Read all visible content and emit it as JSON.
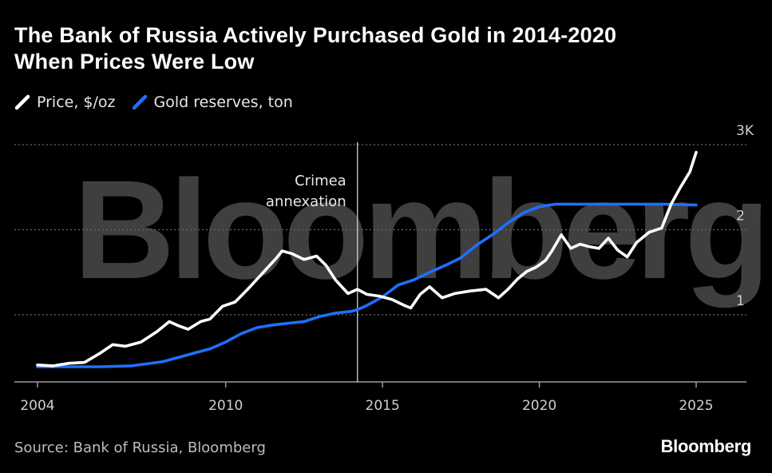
{
  "title_lines": [
    "The Bank of Russia Actively Purchased Gold in 2014-2020",
    "When Prices Were Low"
  ],
  "legend": [
    {
      "label": "Price, $/oz",
      "color": "#ffffff"
    },
    {
      "label": "Gold reserves, ton",
      "color": "#1f6fff"
    }
  ],
  "source": "Source: Bank of Russia, Bloomberg",
  "brand": "Bloomberg",
  "watermark": "Bloomberg",
  "chart_data": {
    "type": "line",
    "title": "The Bank of Russia Actively Purchased Gold in 2014-2020 When Prices Were Low",
    "x_ticks": [
      "2004",
      "2010",
      "2015",
      "2020",
      "2025"
    ],
    "y_ticks": [
      "1",
      "2",
      "3K"
    ],
    "xlim": [
      2004,
      2026.5
    ],
    "ylim": [
      0.2,
      3.1
    ],
    "grid": "horizontal dotted",
    "legend_position": "top-left",
    "annotation": {
      "text_lines": [
        "Crimea",
        "annexation"
      ],
      "x": 2014.2
    },
    "series": [
      {
        "name": "Price, $/oz",
        "color": "#ffffff",
        "unit": "thousand $/oz",
        "x": [
          2004.0,
          2004.5,
          2005.0,
          2005.5,
          2006.0,
          2006.4,
          2006.8,
          2007.3,
          2007.8,
          2008.2,
          2008.5,
          2008.8,
          2009.2,
          2009.5,
          2009.9,
          2010.3,
          2010.7,
          2011.0,
          2011.3,
          2011.6,
          2011.8,
          2012.1,
          2012.5,
          2012.9,
          2013.2,
          2013.5,
          2013.9,
          2014.2,
          2014.5,
          2014.9,
          2015.3,
          2015.7,
          2015.9,
          2016.2,
          2016.5,
          2016.9,
          2017.3,
          2017.8,
          2018.3,
          2018.7,
          2019.0,
          2019.3,
          2019.6,
          2019.9,
          2020.2,
          2020.4,
          2020.7,
          2021.0,
          2021.3,
          2021.6,
          2021.9,
          2022.2,
          2022.5,
          2022.8,
          2023.1,
          2023.5,
          2023.9,
          2024.2,
          2024.5,
          2024.8,
          2025.0
        ],
        "y": [
          0.41,
          0.4,
          0.43,
          0.44,
          0.55,
          0.65,
          0.63,
          0.68,
          0.8,
          0.92,
          0.87,
          0.83,
          0.92,
          0.95,
          1.1,
          1.15,
          1.3,
          1.42,
          1.54,
          1.66,
          1.75,
          1.72,
          1.65,
          1.69,
          1.58,
          1.41,
          1.25,
          1.3,
          1.24,
          1.22,
          1.18,
          1.11,
          1.08,
          1.24,
          1.33,
          1.2,
          1.25,
          1.28,
          1.3,
          1.2,
          1.3,
          1.42,
          1.51,
          1.56,
          1.64,
          1.75,
          1.94,
          1.78,
          1.83,
          1.8,
          1.78,
          1.9,
          1.76,
          1.68,
          1.85,
          1.97,
          2.02,
          2.3,
          2.5,
          2.68,
          2.91
        ]
      },
      {
        "name": "Gold reserves, ton",
        "color": "#1f6fff",
        "unit": "thousand tons",
        "x": [
          2004.0,
          2005.0,
          2006.0,
          2007.0,
          2008.0,
          2008.5,
          2009.0,
          2009.5,
          2010.0,
          2010.5,
          2011.0,
          2011.5,
          2012.0,
          2012.5,
          2013.0,
          2013.5,
          2014.0,
          2014.2,
          2014.5,
          2015.0,
          2015.5,
          2016.0,
          2016.5,
          2017.0,
          2017.5,
          2018.0,
          2018.5,
          2019.0,
          2019.5,
          2020.0,
          2020.5,
          2021.0,
          2022.0,
          2023.0,
          2024.0,
          2025.0
        ],
        "y": [
          0.39,
          0.39,
          0.39,
          0.4,
          0.45,
          0.5,
          0.55,
          0.6,
          0.68,
          0.78,
          0.85,
          0.88,
          0.9,
          0.92,
          0.98,
          1.02,
          1.04,
          1.06,
          1.11,
          1.21,
          1.35,
          1.41,
          1.5,
          1.58,
          1.67,
          1.82,
          1.94,
          2.08,
          2.2,
          2.27,
          2.3,
          2.3,
          2.3,
          2.3,
          2.3,
          2.29
        ]
      }
    ]
  }
}
